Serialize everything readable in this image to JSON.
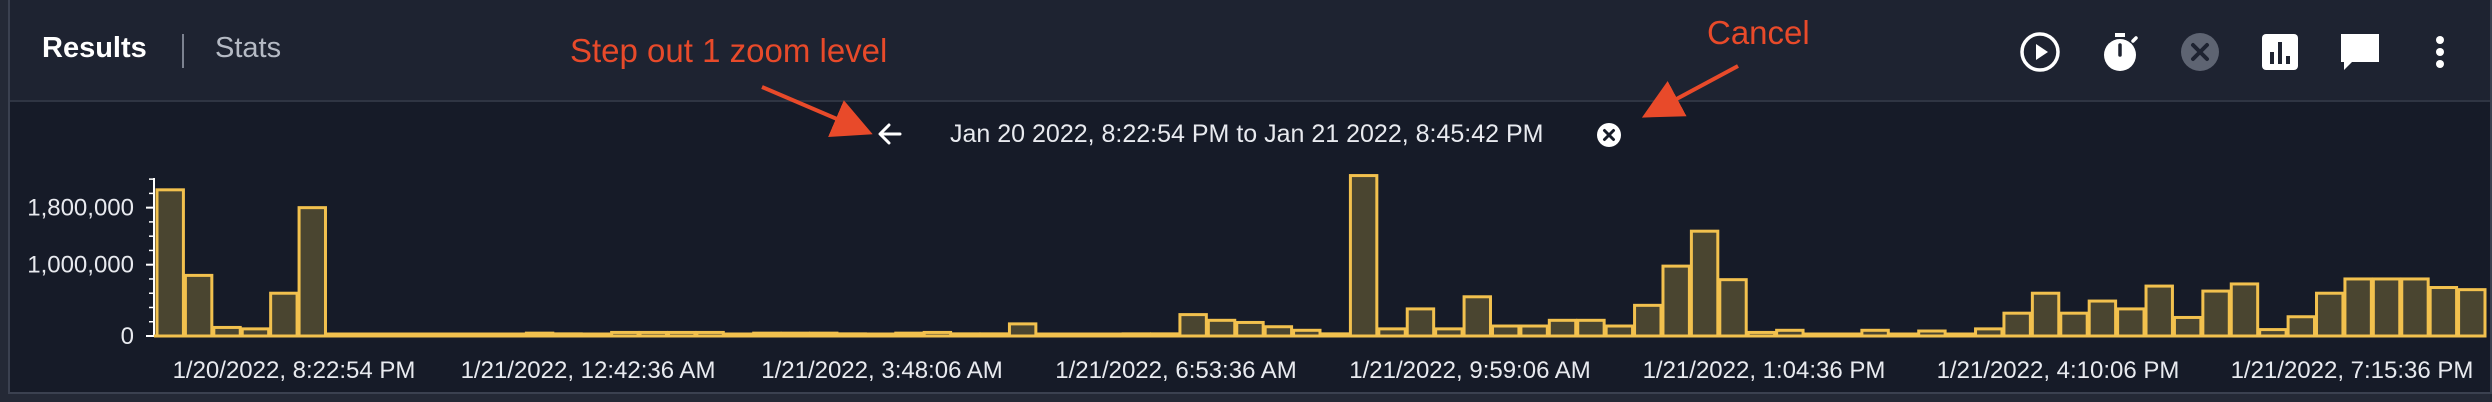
{
  "header": {
    "tabs": [
      {
        "label": "Results",
        "active": true
      },
      {
        "label": "Stats",
        "active": false
      }
    ],
    "toolbar": [
      {
        "icon": "play-circle-icon",
        "enabled": true
      },
      {
        "icon": "stopwatch-icon",
        "enabled": true
      },
      {
        "icon": "cancel-circle-icon",
        "enabled": false
      },
      {
        "icon": "bar-chart-icon",
        "enabled": true
      },
      {
        "icon": "comment-icon",
        "enabled": true
      },
      {
        "icon": "more-vertical-icon",
        "enabled": true
      }
    ]
  },
  "range": {
    "text": "Jan 20 2022, 8:22:54 PM to Jan 21 2022, 8:45:42 PM",
    "back_icon": "arrow-left-icon",
    "cancel_icon": "close-circle-icon"
  },
  "annotations": {
    "step_out": "Step out 1 zoom level",
    "cancel": "Cancel",
    "color": "#e84a2a"
  },
  "colors": {
    "bar_fill": "#4a4530",
    "bar_stroke": "#f2c14e",
    "text": "#e8eaef"
  },
  "chart_data": {
    "type": "bar",
    "y_ticks": [
      "1,800,000",
      "1,000,000",
      "0"
    ],
    "x_tick_labels": [
      "1/20/2022, 8:22:54 PM",
      "1/21/2022, 12:42:36 AM",
      "1/21/2022, 3:48:06 AM",
      "1/21/2022, 6:53:36 AM",
      "1/21/2022, 9:59:06 AM",
      "1/21/2022, 1:04:36 PM",
      "1/21/2022, 4:10:06 PM",
      "1/21/2022, 7:15:36 PM"
    ],
    "ylim": [
      0,
      2300000
    ],
    "values": [
      2050000,
      850000,
      120000,
      100000,
      600000,
      1800000,
      20000,
      20000,
      20000,
      20000,
      20000,
      20000,
      20000,
      40000,
      30000,
      15000,
      50000,
      50000,
      50000,
      50000,
      20000,
      40000,
      40000,
      40000,
      30000,
      20000,
      40000,
      50000,
      30000,
      30000,
      170000,
      20000,
      20000,
      20000,
      30000,
      30000,
      300000,
      220000,
      190000,
      130000,
      80000,
      30000,
      2250000,
      100000,
      380000,
      100000,
      550000,
      140000,
      140000,
      220000,
      220000,
      140000,
      430000,
      980000,
      1470000,
      790000,
      50000,
      80000,
      20000,
      20000,
      80000,
      20000,
      70000,
      20000,
      100000,
      320000,
      600000,
      320000,
      490000,
      380000,
      700000,
      260000,
      630000,
      730000,
      90000,
      270000,
      600000,
      800000,
      800000,
      800000,
      680000,
      650000
    ]
  }
}
